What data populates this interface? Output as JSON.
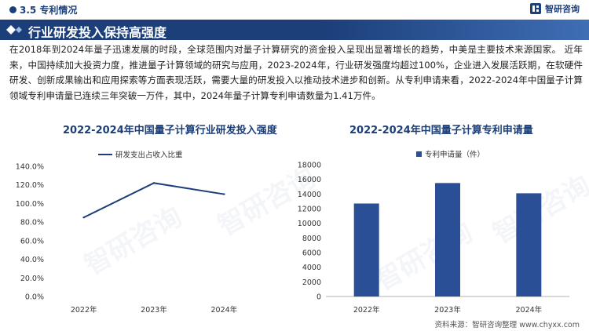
{
  "header": {
    "section": "3.5 专利情况",
    "brand_name": "智研咨询"
  },
  "title_bar": {
    "title": "行业研发投入保持高强度"
  },
  "body": {
    "paragraph": "在2018年到2024年量子迅速发展的时段，全球范围内对量子计算研究的资金投入呈现出显著增长的趋势，中美是主要技术来源国家。 近年来，中国持续加大投资力度，推进量子计算领域的研究与应用，2023-2024年，行业研发强度均超过100%，企业进入发展活跃期，在软硬件研发、创新成果输出和应用探索等方面表现活跃，需要大量的研发投入以推动技术进步和创新。从专利申请来看，2022-2024年中国量子计算领域专利申请量已连续三年突破一万件，其中，2024年量子计算专利申请数量为1.41万件。"
  },
  "watermark": "智研咨询",
  "footer": {
    "source": "资料来源：智研咨询整理  www.chyxx.com"
  },
  "colors": {
    "primary": "#1c3f7a",
    "bar": "#2b4f96",
    "line": "#1c3f7a"
  },
  "chart_data": [
    {
      "type": "line",
      "title": "2022-2024年中国量子计算行业研发投入强度",
      "legend": "研发支出占收入比重",
      "legend_position": "top-left",
      "x": [
        "2022年",
        "2023年",
        "2024年"
      ],
      "series": [
        {
          "name": "研发支出占收入比重",
          "values": [
            85,
            122,
            110
          ]
        }
      ],
      "y_ticks": [
        "0.0%",
        "20.0%",
        "40.0%",
        "60.0%",
        "80.0%",
        "100.0%",
        "120.0%",
        "140.0%"
      ],
      "ylim": [
        0,
        140
      ],
      "grid": false
    },
    {
      "type": "bar",
      "title": "2022-2024年中国量子计算专利申请量",
      "legend": "专利申请量（件）",
      "legend_position": "top-center",
      "categories": [
        "2022年",
        "2023年",
        "2024年"
      ],
      "series": [
        {
          "name": "专利申请量（件）",
          "values": [
            12700,
            15500,
            14100
          ]
        }
      ],
      "y_ticks": [
        "0",
        "2000",
        "4000",
        "6000",
        "8000",
        "10000",
        "12000",
        "14000",
        "16000",
        "18000"
      ],
      "ylim": [
        0,
        18000
      ],
      "grid": false
    }
  ]
}
